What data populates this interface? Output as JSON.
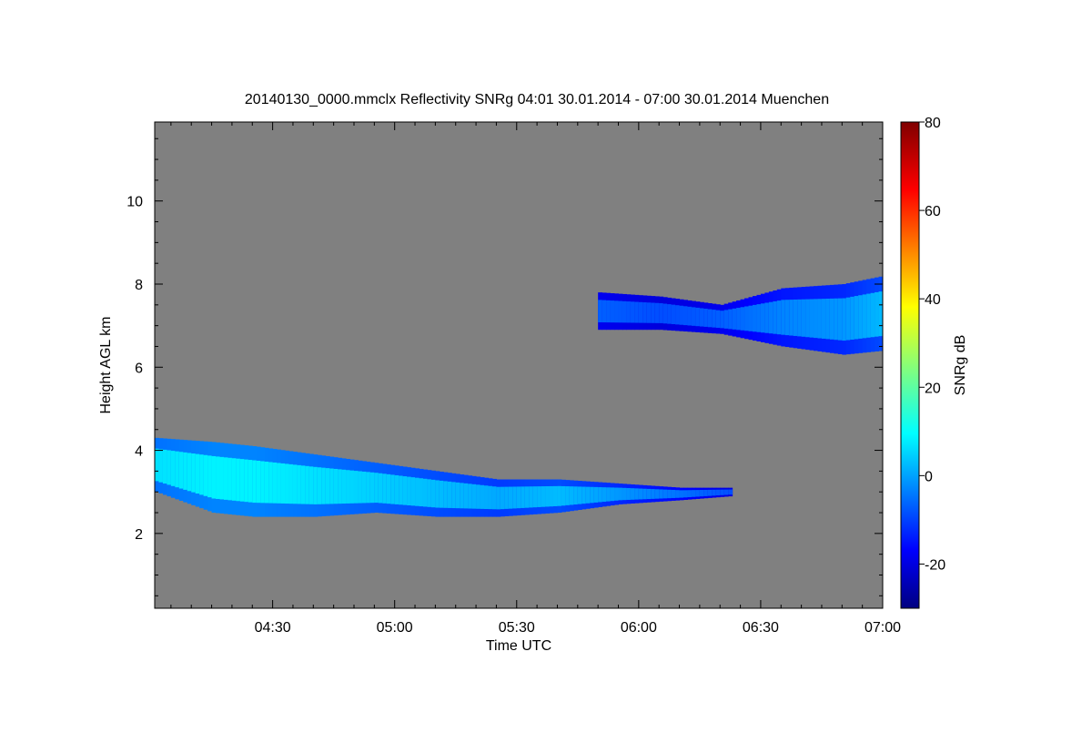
{
  "chart_data": {
    "type": "heatmap",
    "title": "20140130_0000.mmclx Reflectivity SNRg   04:01 30.01.2014 - 07:00 30.01.2014 Muenchen",
    "xlabel": "Time UTC",
    "ylabel": "Height AGL km",
    "x_tick_labels": [
      "04:30",
      "05:00",
      "05:30",
      "06:00",
      "06:30",
      "07:00"
    ],
    "x_tick_minutes": [
      270,
      300,
      330,
      360,
      390,
      420
    ],
    "xlim_minutes": [
      241,
      420
    ],
    "y_ticks": [
      2,
      4,
      6,
      8,
      10
    ],
    "ylim": [
      0.2,
      11.9
    ],
    "background_color": "#808080",
    "colorbar": {
      "label": "SNRg dB",
      "ticks": [
        -20,
        0,
        20,
        40,
        60,
        80
      ],
      "range": [
        -30,
        80
      ],
      "colormap": "jet"
    },
    "layers": [
      {
        "label_hint": "lower cloud",
        "points": [
          [
            241,
            3.0,
            4.3,
            8
          ],
          [
            255,
            2.5,
            4.2,
            10
          ],
          [
            265,
            2.4,
            4.1,
            10
          ],
          [
            280,
            2.4,
            3.9,
            8
          ],
          [
            295,
            2.5,
            3.7,
            6
          ],
          [
            310,
            2.4,
            3.5,
            4
          ],
          [
            325,
            2.4,
            3.3,
            2
          ],
          [
            340,
            2.5,
            3.3,
            4
          ],
          [
            355,
            2.7,
            3.2,
            0
          ],
          [
            370,
            2.8,
            3.1,
            -4
          ],
          [
            383,
            2.9,
            3.1,
            -8
          ]
        ]
      },
      {
        "label_hint": "upper cloud",
        "points": [
          [
            350,
            6.9,
            7.8,
            -6
          ],
          [
            365,
            6.9,
            7.7,
            -8
          ],
          [
            380,
            6.8,
            7.5,
            -6
          ],
          [
            395,
            6.5,
            7.9,
            -2
          ],
          [
            410,
            6.3,
            8.0,
            0
          ],
          [
            420,
            6.4,
            8.2,
            4
          ]
        ]
      }
    ]
  }
}
